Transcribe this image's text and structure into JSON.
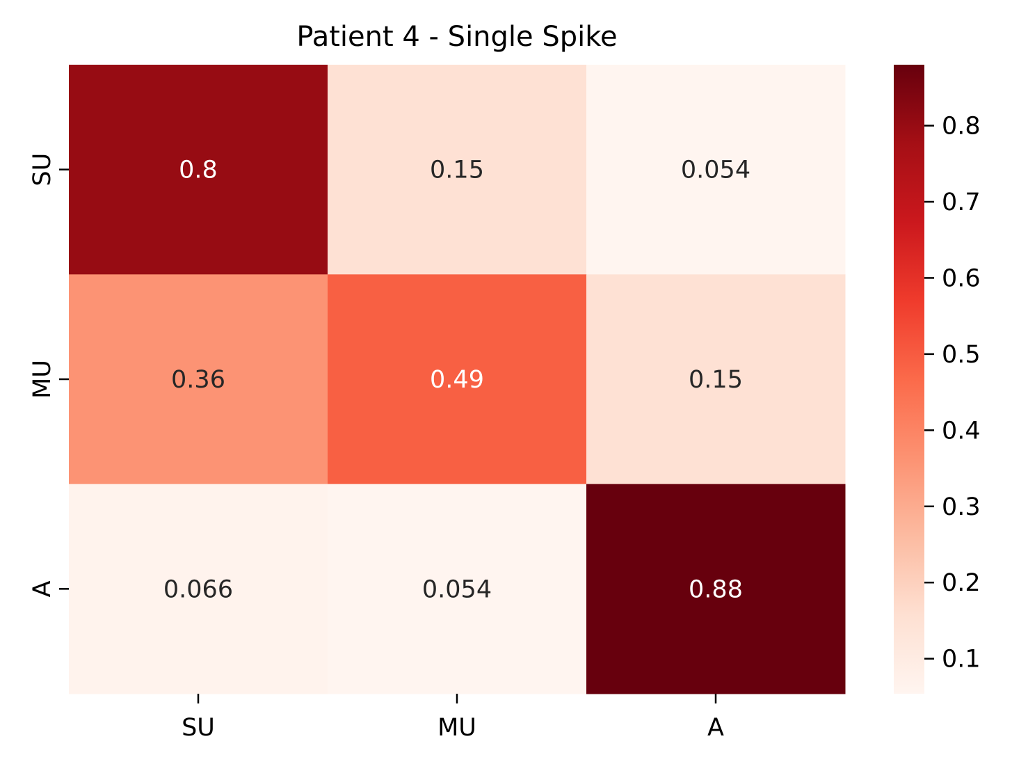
{
  "chart_data": {
    "type": "heatmap",
    "title": "Patient 4 - Single Spike",
    "xlabel": "",
    "ylabel": "",
    "x_categories": [
      "SU",
      "MU",
      "A"
    ],
    "y_categories": [
      "SU",
      "MU",
      "A"
    ],
    "values": [
      [
        0.8,
        0.15,
        0.054
      ],
      [
        0.36,
        0.49,
        0.15
      ],
      [
        0.066,
        0.054,
        0.88
      ]
    ],
    "cell_labels": [
      [
        "0.8",
        "0.15",
        "0.054"
      ],
      [
        "0.36",
        "0.49",
        "0.15"
      ],
      [
        "0.066",
        "0.054",
        "0.88"
      ]
    ],
    "colormap": "Reds",
    "colorbar": {
      "range": [
        0.054,
        0.88
      ],
      "ticks": [
        0.1,
        0.2,
        0.3,
        0.4,
        0.5,
        0.6,
        0.7,
        0.8
      ],
      "tick_labels": [
        "0.1",
        "0.2",
        "0.3",
        "0.4",
        "0.5",
        "0.6",
        "0.7",
        "0.8"
      ]
    },
    "grid": false,
    "legend": "colorbar-right"
  }
}
